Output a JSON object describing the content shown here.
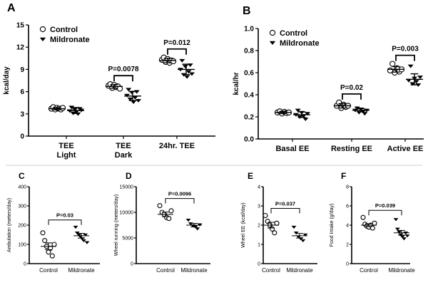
{
  "chart_data": [
    {
      "panel": "A",
      "type": "scatter",
      "ylabel": "kcal/day",
      "ylim": [
        0,
        15
      ],
      "yticks": [
        0,
        3,
        6,
        9,
        12,
        15
      ],
      "categories": [
        [
          "TEE",
          "Light"
        ],
        [
          "TEE",
          "Dark"
        ],
        [
          "24hr. TEE"
        ]
      ],
      "legend": [
        "Control",
        "Mildronate"
      ],
      "legend_position": "top-left",
      "series": [
        {
          "name": "Control",
          "marker": "circle",
          "points": [
            [
              3.7,
              3.9,
              3.6,
              3.8,
              3.7,
              3.6,
              3.8
            ],
            [
              6.8,
              7.0,
              6.5,
              6.9,
              6.6,
              6.7,
              6.4
            ],
            [
              10.3,
              10.6,
              10.0,
              10.4,
              9.9,
              10.2,
              10.1
            ]
          ],
          "mean": [
            3.7,
            6.7,
            10.2
          ],
          "err": [
            0.15,
            0.25,
            0.3
          ]
        },
        {
          "name": "Mildronate",
          "marker": "triangle-down",
          "points": [
            [
              3.4,
              3.9,
              3.1,
              3.6,
              3.3,
              3.0,
              3.7,
              3.5
            ],
            [
              5.5,
              6.3,
              5.0,
              5.9,
              4.6,
              5.2,
              6.0,
              4.8
            ],
            [
              9.0,
              10.2,
              8.3,
              9.4,
              8.0,
              8.7,
              9.6,
              8.4
            ]
          ],
          "mean": [
            3.45,
            5.4,
            9.0
          ],
          "err": [
            0.4,
            0.6,
            0.7
          ]
        }
      ],
      "annotations": [
        {
          "category": 1,
          "text": "P=0.0078"
        },
        {
          "category": 2,
          "text": "P=0.012"
        }
      ]
    },
    {
      "panel": "B",
      "type": "scatter",
      "ylabel": "kcal/hr",
      "ylim": [
        0,
        1.0
      ],
      "yticks": [
        "0.0",
        "0.2",
        "0.4",
        "0.6",
        "0.8",
        "1.0"
      ],
      "categories": [
        [
          "Basal EE"
        ],
        [
          "Resting EE"
        ],
        [
          "Active EE"
        ]
      ],
      "legend": [
        "Control",
        "Mildronate"
      ],
      "legend_position": "top-left",
      "series": [
        {
          "name": "Control",
          "marker": "circle",
          "points": [
            [
              0.24,
              0.25,
              0.23,
              0.245,
              0.235,
              0.24
            ],
            [
              0.3,
              0.33,
              0.28,
              0.31,
              0.29,
              0.3
            ],
            [
              0.62,
              0.68,
              0.6,
              0.64,
              0.61,
              0.63
            ]
          ],
          "mean": [
            0.24,
            0.3,
            0.63
          ],
          "err": [
            0.01,
            0.02,
            0.025
          ]
        },
        {
          "name": "Mildronate",
          "marker": "triangle-down",
          "points": [
            [
              0.22,
              0.26,
              0.2,
              0.24,
              0.21,
              0.18,
              0.23
            ],
            [
              0.26,
              0.28,
              0.24,
              0.27,
              0.25,
              0.23,
              0.26
            ],
            [
              0.53,
              0.66,
              0.5,
              0.55,
              0.52,
              0.49,
              0.56
            ]
          ],
          "mean": [
            0.22,
            0.26,
            0.54
          ],
          "err": [
            0.025,
            0.015,
            0.05
          ]
        }
      ],
      "annotations": [
        {
          "category": 1,
          "text": "P=0.02"
        },
        {
          "category": 2,
          "text": "P=0.003"
        }
      ]
    },
    {
      "panel": "C",
      "type": "scatter",
      "ylabel": "Ambulation (meters/day)",
      "ylim": [
        0,
        400
      ],
      "yticks": [
        0,
        100,
        200,
        300,
        400
      ],
      "categories": [
        "Control",
        "Mildronate"
      ],
      "series": [
        {
          "name": "Control",
          "marker": "circle",
          "points": [
            160,
            120,
            90,
            60,
            80,
            40,
            100
          ],
          "mean": 90,
          "err": 18
        },
        {
          "name": "Mildronate",
          "marker": "triangle-down",
          "points": [
            190,
            160,
            150,
            140,
            130,
            120,
            150,
            110
          ],
          "mean": 145,
          "err": 12
        }
      ],
      "annotation": "P=0.03"
    },
    {
      "panel": "D",
      "type": "scatter",
      "ylabel": "Wheel running (meters/day)",
      "ylim": [
        0,
        15000
      ],
      "yticks": [
        0,
        5000,
        10000,
        15000
      ],
      "categories": [
        "Control",
        "Mildronate"
      ],
      "series": [
        {
          "name": "Control",
          "marker": "circle",
          "points": [
            11300,
            10000,
            9600,
            9000,
            8800,
            10300
          ],
          "mean": 9600,
          "err": 450
        },
        {
          "name": "Mildronate",
          "marker": "triangle-down",
          "points": [
            8500,
            7800,
            7400,
            7200,
            6800,
            7600
          ],
          "mean": 7500,
          "err": 350
        }
      ],
      "annotation": "P=0.0096"
    },
    {
      "panel": "E",
      "type": "scatter",
      "ylabel": "Wheel EE (kcal/day)",
      "ylim": [
        0,
        4
      ],
      "yticks": [
        0,
        1,
        2,
        3,
        4
      ],
      "categories": [
        "Control",
        "Mildronate"
      ],
      "series": [
        {
          "name": "Control",
          "marker": "circle",
          "points": [
            2.5,
            2.2,
            2.0,
            1.8,
            1.6,
            2.1
          ],
          "mean": 2.0,
          "err": 0.15
        },
        {
          "name": "Mildronate",
          "marker": "triangle-down",
          "points": [
            1.9,
            1.6,
            1.4,
            1.3,
            1.2,
            1.5
          ],
          "mean": 1.45,
          "err": 0.12
        }
      ],
      "annotation": "P=0.037"
    },
    {
      "panel": "F",
      "type": "scatter",
      "ylabel": "Food Intake (g/day)",
      "ylim": [
        0,
        8
      ],
      "yticks": [
        0,
        2,
        4,
        6,
        8
      ],
      "categories": [
        "Control",
        "Mildronate"
      ],
      "series": [
        {
          "name": "Control",
          "marker": "circle",
          "points": [
            4.8,
            4.1,
            3.9,
            3.8,
            4.0,
            3.7,
            4.2
          ],
          "mean": 4.0,
          "err": 0.15
        },
        {
          "name": "Mildronate",
          "marker": "triangle-down",
          "points": [
            4.6,
            3.6,
            3.3,
            3.0,
            2.8,
            2.6,
            3.2,
            2.9
          ],
          "mean": 3.2,
          "err": 0.25
        }
      ],
      "annotation": "P=0.039"
    }
  ]
}
